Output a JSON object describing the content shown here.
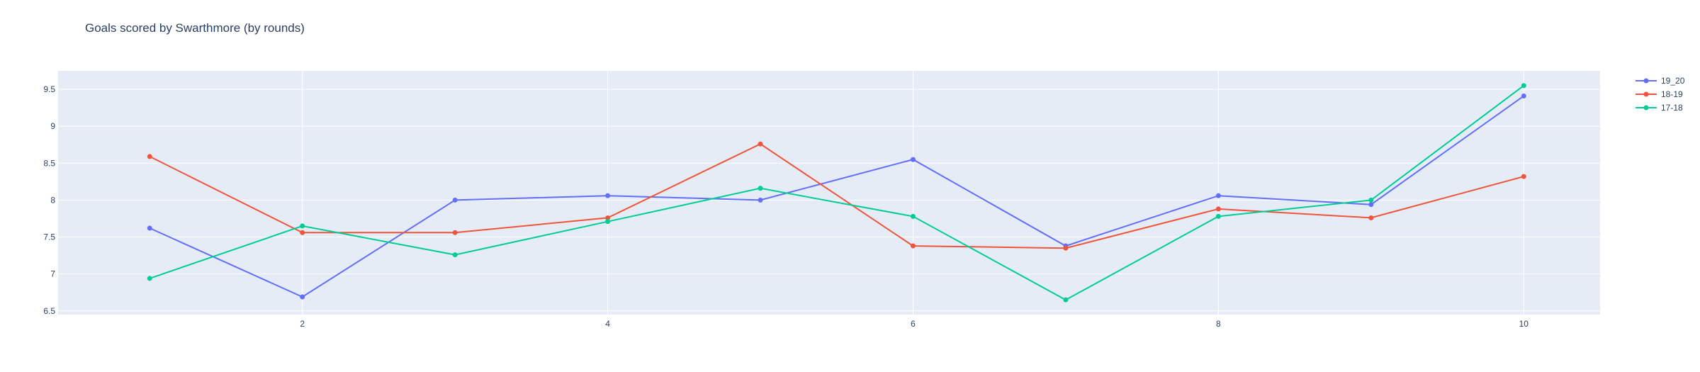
{
  "chart_data": {
    "type": "line",
    "title": "Goals scored by Swarthmore (by rounds)",
    "xlabel": "",
    "ylabel": "",
    "x": [
      1,
      2,
      3,
      4,
      5,
      6,
      7,
      8,
      9,
      10
    ],
    "xlim": [
      0.4,
      10.5
    ],
    "ylim": [
      6.45,
      9.75
    ],
    "xticks": [
      2,
      4,
      6,
      8,
      10
    ],
    "xtick_labels": [
      "2",
      "4",
      "6",
      "8",
      "10"
    ],
    "yticks": [
      6.5,
      7,
      7.5,
      8,
      8.5,
      9,
      9.5
    ],
    "ytick_labels": [
      "6.5",
      "7",
      "7.5",
      "8",
      "8.5",
      "9",
      "9.5"
    ],
    "grid": true,
    "legend_position": "top-right",
    "series": [
      {
        "name": "19_20",
        "color": "#636efa",
        "values": [
          7.62,
          6.69,
          8.0,
          8.06,
          8.0,
          8.55,
          7.38,
          8.06,
          7.94,
          9.41
        ]
      },
      {
        "name": "18-19",
        "color": "#ef553b",
        "values": [
          8.59,
          7.56,
          7.56,
          7.76,
          8.76,
          7.38,
          7.35,
          7.88,
          7.76,
          8.32
        ]
      },
      {
        "name": "17-18",
        "color": "#00cc96",
        "values": [
          6.94,
          7.65,
          7.26,
          7.71,
          8.16,
          7.78,
          6.65,
          7.78,
          8.0,
          9.55
        ]
      }
    ],
    "colors": {
      "plot_background": "#e5ecf6",
      "grid": "#ffffff",
      "tick_text": "#2a3f5f"
    }
  }
}
